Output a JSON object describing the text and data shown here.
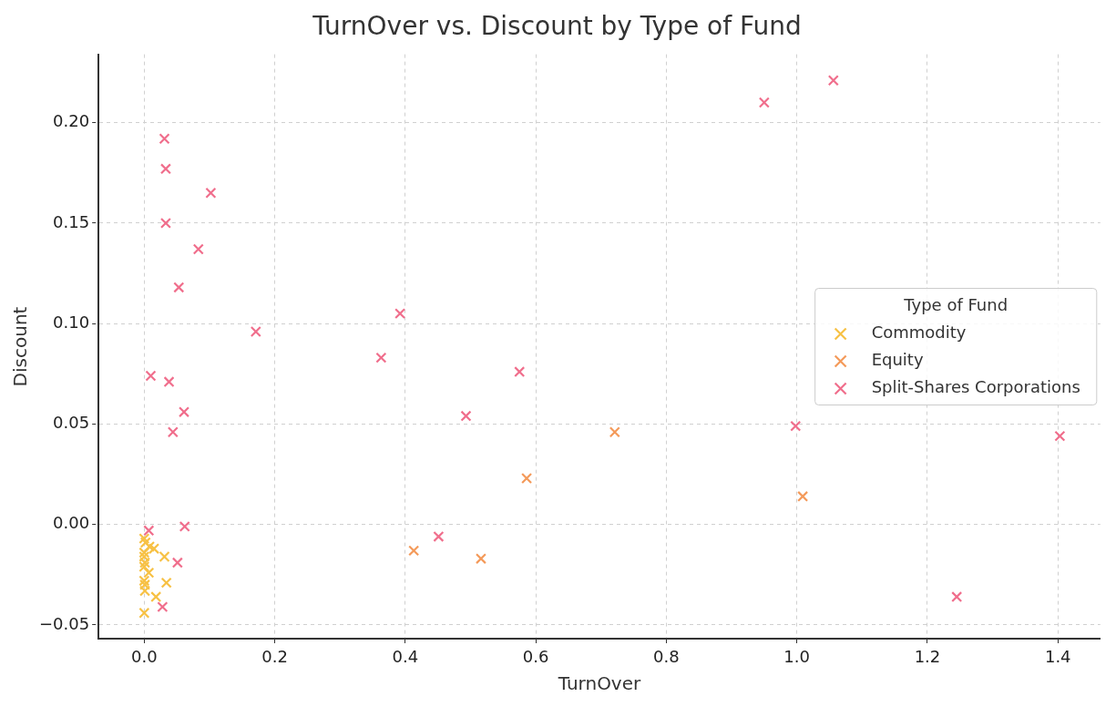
{
  "chart_data": {
    "type": "scatter",
    "title": "TurnOver vs. Discount by Type of Fund",
    "xlabel": "TurnOver",
    "ylabel": "Discount",
    "legend_title": "Type of Fund",
    "legend": "right",
    "marker": "cross",
    "grid": true,
    "xlim": [
      -0.07,
      1.465
    ],
    "xticks": [
      {
        "value": 0,
        "label": "0.0"
      },
      {
        "value": 0.2,
        "label": "0.2"
      },
      {
        "value": 0.4,
        "label": "0.4"
      },
      {
        "value": 0.6,
        "label": "0.6"
      },
      {
        "value": 0.8,
        "label": "0.8"
      },
      {
        "value": 1,
        "label": "1.0"
      },
      {
        "value": 1.2,
        "label": "1.2"
      },
      {
        "value": 1.4,
        "label": "1.4"
      }
    ],
    "ylim": [
      -0.057,
      0.234
    ],
    "yticks": [
      {
        "value": -0.05,
        "label": "−0.05"
      },
      {
        "value": 0,
        "label": "0.00"
      },
      {
        "value": 0.05,
        "label": "0.05"
      },
      {
        "value": 0.1,
        "label": "0.10"
      },
      {
        "value": 0.15,
        "label": "0.15"
      },
      {
        "value": 0.2,
        "label": "0.20"
      }
    ],
    "series": [
      {
        "name": "Commodity",
        "color": "#f7c144",
        "x": [
          0.0,
          0.002,
          0.008,
          0.015,
          0.0,
          0.0,
          0.001,
          0.0,
          0.007,
          0.031,
          0.034,
          0.0,
          0.001,
          0.001,
          0.018,
          0.0
        ],
        "values": [
          -0.007,
          -0.009,
          -0.011,
          -0.012,
          -0.014,
          -0.016,
          -0.019,
          -0.021,
          -0.024,
          -0.016,
          -0.029,
          -0.028,
          -0.03,
          -0.033,
          -0.036,
          -0.044
        ]
      },
      {
        "name": "Equity",
        "color": "#f49a5a",
        "x": [
          0.721,
          0.586,
          1.009,
          0.413,
          0.516
        ],
        "values": [
          0.046,
          0.023,
          0.014,
          -0.013,
          -0.017
        ]
      },
      {
        "name": "Split-Shares Corporations",
        "color": "#f06e8c",
        "x": [
          0.031,
          0.033,
          0.102,
          0.033,
          0.083,
          0.053,
          0.171,
          0.01,
          0.038,
          0.061,
          0.044,
          0.95,
          1.056,
          0.392,
          0.363,
          0.575,
          0.493,
          0.998,
          1.403,
          1.245,
          0.451,
          0.007,
          0.062,
          0.051,
          0.028
        ],
        "values": [
          0.192,
          0.177,
          0.165,
          0.15,
          0.137,
          0.118,
          0.096,
          0.074,
          0.071,
          0.056,
          0.046,
          0.21,
          0.221,
          0.105,
          0.083,
          0.076,
          0.054,
          0.049,
          0.044,
          -0.036,
          -0.006,
          -0.003,
          -0.001,
          -0.019,
          -0.041
        ]
      }
    ]
  }
}
